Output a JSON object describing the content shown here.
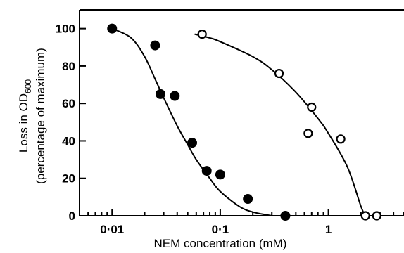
{
  "chart_data": {
    "type": "scatter",
    "xlabel": "NEM concentration (mM)",
    "ylabel_line1": "Loss in OD",
    "ylabel_subscript": "600",
    "ylabel_line2": "(percentage of maximum)",
    "xscale": "log",
    "xlim": [
      0.005,
      5
    ],
    "ylim": [
      0,
      110
    ],
    "x_ticks": [
      0.01,
      0.1,
      1
    ],
    "x_tick_labels": [
      "0·01",
      "0·1",
      "1"
    ],
    "y_ticks": [
      0,
      20,
      40,
      60,
      80,
      100
    ],
    "y_tick_labels": [
      "0",
      "20",
      "40",
      "60",
      "80",
      "100"
    ],
    "grid": false,
    "series": [
      {
        "marker": "filled-circle",
        "color": "#000000",
        "points": [
          [
            0.01,
            100
          ],
          [
            0.025,
            91
          ],
          [
            0.028,
            65
          ],
          [
            0.038,
            64
          ],
          [
            0.055,
            39
          ],
          [
            0.075,
            24
          ],
          [
            0.1,
            22
          ],
          [
            0.18,
            9
          ],
          [
            0.4,
            0
          ]
        ],
        "fit_curve": [
          [
            0.01,
            100
          ],
          [
            0.015,
            95
          ],
          [
            0.02,
            85
          ],
          [
            0.025,
            73
          ],
          [
            0.03,
            63
          ],
          [
            0.04,
            48
          ],
          [
            0.05,
            38
          ],
          [
            0.06,
            30
          ],
          [
            0.08,
            20
          ],
          [
            0.1,
            13
          ],
          [
            0.15,
            5
          ],
          [
            0.2,
            2
          ],
          [
            0.3,
            0
          ]
        ]
      },
      {
        "marker": "open-circle",
        "color": "#000000",
        "points": [
          [
            0.068,
            97
          ],
          [
            0.35,
            76
          ],
          [
            0.7,
            58
          ],
          [
            0.65,
            44
          ],
          [
            1.3,
            41
          ],
          [
            2.2,
            0
          ],
          [
            2.8,
            0
          ]
        ],
        "fit_curve": [
          [
            0.058,
            97
          ],
          [
            0.08,
            95
          ],
          [
            0.1,
            93
          ],
          [
            0.2,
            85
          ],
          [
            0.3,
            78
          ],
          [
            0.5,
            66
          ],
          [
            0.8,
            52
          ],
          [
            1.0,
            44
          ],
          [
            1.5,
            26
          ],
          [
            2.0,
            5
          ],
          [
            2.2,
            0
          ]
        ]
      }
    ]
  }
}
